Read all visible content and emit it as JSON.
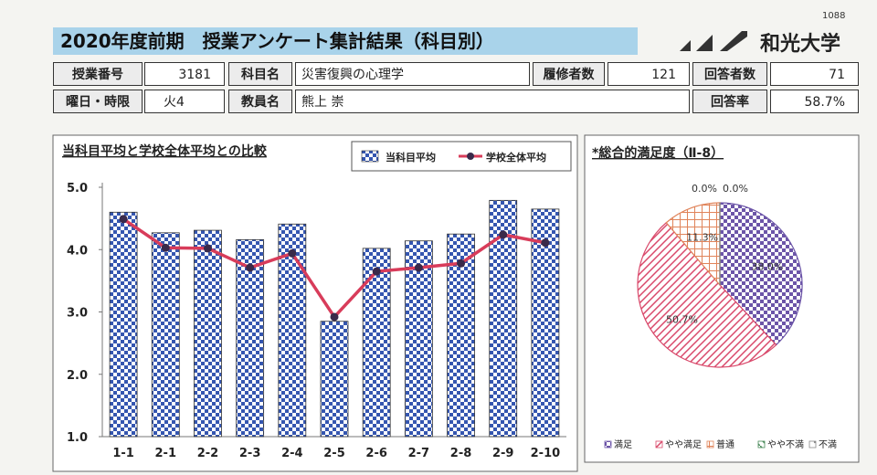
{
  "header": {
    "title": "2020年度前期　授業アンケート集計結果（科目別）",
    "logo": "和光大学",
    "page_number": "1088"
  },
  "info": {
    "rows": [
      [
        "授業番号",
        "3181",
        "科目名",
        "災害復興の心理学",
        "履修者数",
        "121",
        "回答者数",
        "71"
      ],
      [
        "曜日・時限",
        "火4",
        "教員名",
        "熊上 崇",
        "回答率",
        "58.7%"
      ]
    ]
  },
  "chart_data": [
    {
      "type": "bar",
      "title": "当科目平均と学校全体平均との比較",
      "categories": [
        "1-1",
        "2-1",
        "2-2",
        "2-3",
        "2-4",
        "2-5",
        "2-6",
        "2-7",
        "2-8",
        "2-9",
        "2-10"
      ],
      "series": [
        {
          "name": "当科目平均",
          "color": "#3556b0",
          "values": [
            4.6,
            4.27,
            4.31,
            4.16,
            4.41,
            2.85,
            4.02,
            4.14,
            4.25,
            4.79,
            4.65
          ]
        },
        {
          "name": "学校全体平均",
          "type": "line",
          "color": "#d83c5a",
          "values": [
            4.49,
            4.03,
            4.02,
            3.71,
            3.94,
            2.92,
            3.65,
            3.71,
            3.78,
            4.24,
            4.11
          ]
        }
      ],
      "ylim": [
        1,
        5
      ],
      "yticks": [
        {
          "value": 1,
          "label": "1.0"
        },
        {
          "value": 2,
          "label": "2.0"
        },
        {
          "value": 3,
          "label": "3.0"
        },
        {
          "value": 4,
          "label": "4.0"
        },
        {
          "value": 5,
          "label": "5.0"
        }
      ]
    },
    {
      "type": "pie",
      "title": "*総合的満足度（Ⅱ-8）",
      "categories": [
        "満足",
        "やや満足",
        "普通",
        "やや不満",
        "不満"
      ],
      "values": [
        38.0,
        50.7,
        11.3,
        0.0,
        0.0
      ],
      "value_labels": [
        "38.0%",
        "50.7%",
        "11.3%",
        "0.0%",
        "0.0%"
      ],
      "colors": [
        "#6c55a8",
        "#d9486a",
        "#e0845a",
        "#4a8a5a",
        "#8a8a8a"
      ]
    }
  ]
}
